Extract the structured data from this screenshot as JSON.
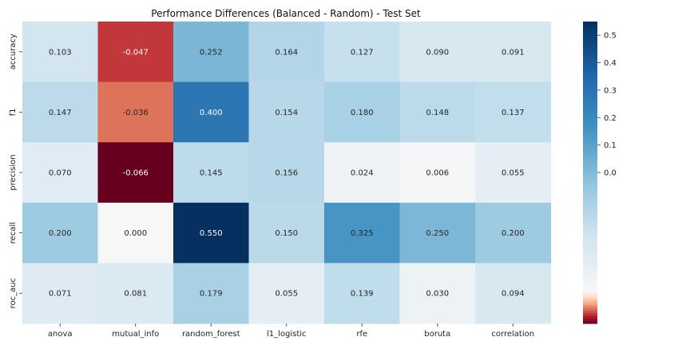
{
  "chart_data": {
    "type": "heatmap",
    "title": "Performance Differences (Balanced - Random) - Test Set",
    "x_categories": [
      "anova",
      "mutual_info",
      "random_forest",
      "l1_logistic",
      "rfe",
      "boruta",
      "correlation"
    ],
    "y_categories": [
      "accuracy",
      "f1",
      "precision",
      "recall",
      "roc_auc"
    ],
    "values": [
      [
        0.103,
        -0.047,
        0.252,
        0.164,
        0.127,
        0.09,
        0.091
      ],
      [
        0.147,
        -0.036,
        0.4,
        0.154,
        0.18,
        0.148,
        0.137
      ],
      [
        0.07,
        -0.066,
        0.145,
        0.156,
        0.024,
        0.006,
        0.055
      ],
      [
        0.2,
        0.0,
        0.55,
        0.15,
        0.325,
        0.25,
        0.2
      ],
      [
        0.071,
        0.081,
        0.179,
        0.055,
        0.139,
        0.03,
        0.094
      ]
    ],
    "value_format": "3 decimals",
    "colormap": "RdBu_r (diverging, centered at 0)",
    "colorbar": {
      "range": [
        -0.066,
        0.55
      ],
      "ticks": [
        0.0,
        0.1,
        0.2,
        0.3,
        0.4,
        0.5
      ],
      "tick_labels": [
        "0.0",
        "0.1",
        "0.2",
        "0.3",
        "0.4",
        "0.5"
      ]
    },
    "grid": false,
    "legend": "none"
  }
}
